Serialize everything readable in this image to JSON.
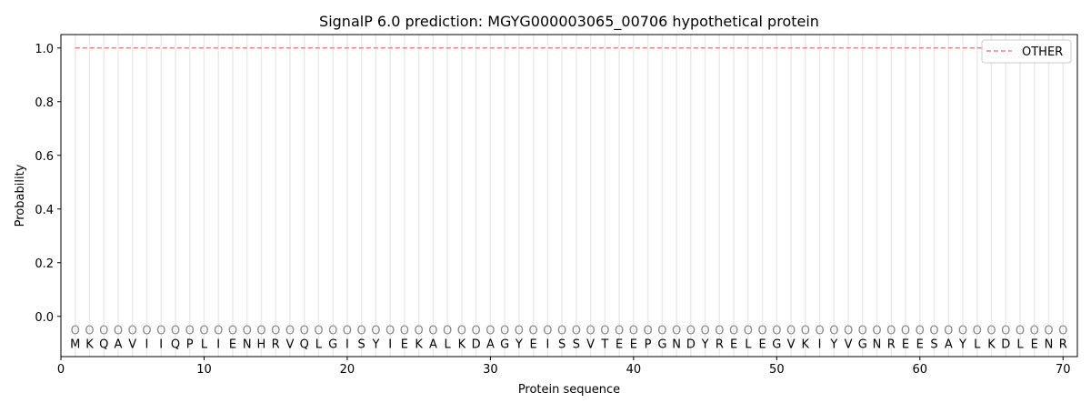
{
  "chart_data": {
    "type": "line",
    "title": "SignalP 6.0 prediction: MGYG000003065_00706 hypothetical protein",
    "xlabel": "Protein sequence",
    "ylabel": "Probability",
    "xlim": [
      0,
      71
    ],
    "ylim": [
      -0.15,
      1.05
    ],
    "xticks": [
      0,
      10,
      20,
      30,
      40,
      50,
      60,
      70
    ],
    "yticks": [
      "0.0",
      "0.2",
      "0.4",
      "0.6",
      "0.8",
      "1.0"
    ],
    "grid": "vertical lines at each residue",
    "legend_position": "top-right",
    "sequence": [
      "M",
      "K",
      "Q",
      "A",
      "V",
      "I",
      "I",
      "Q",
      "P",
      "L",
      "I",
      "E",
      "N",
      "H",
      "R",
      "V",
      "Q",
      "L",
      "G",
      "I",
      "S",
      "Y",
      "I",
      "E",
      "K",
      "A",
      "L",
      "K",
      "D",
      "A",
      "G",
      "Y",
      "E",
      "I",
      "S",
      "S",
      "V",
      "T",
      "E",
      "E",
      "P",
      "G",
      "N",
      "D",
      "Y",
      "R",
      "E",
      "L",
      "E",
      "G",
      "V",
      "K",
      "I",
      "Y",
      "V",
      "G",
      "N",
      "R",
      "E",
      "E",
      "S",
      "A",
      "Y",
      "L",
      "K",
      "D",
      "L",
      "E",
      "N",
      "R"
    ],
    "predicted_label": "O",
    "series": [
      {
        "name": "OTHER",
        "color": "#f08080",
        "style": "dashed",
        "x_range": [
          1,
          70
        ],
        "value": 1.0
      }
    ]
  }
}
